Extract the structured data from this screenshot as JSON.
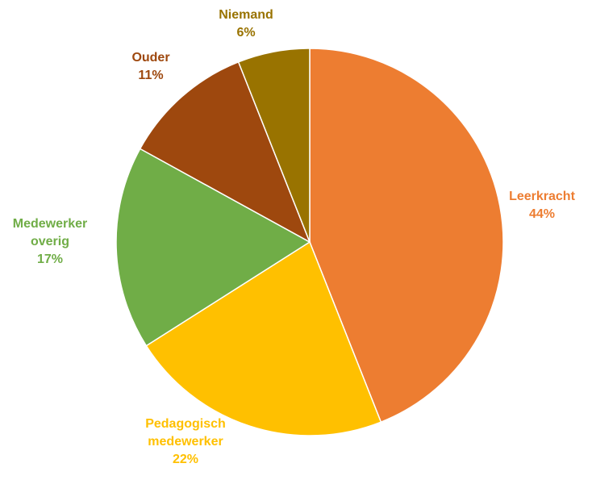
{
  "chart_data": {
    "type": "pie",
    "categories": [
      "Leerkracht",
      "Pedagogisch medewerker",
      "Medewerker overig",
      "Ouder",
      "Niemand"
    ],
    "values": [
      44,
      22,
      17,
      11,
      6
    ],
    "value_labels": [
      "44%",
      "22%",
      "17%",
      "11%",
      "6%"
    ],
    "colors": [
      "#ED7D31",
      "#FFC000",
      "#70AD47",
      "#9E480E",
      "#997300"
    ]
  }
}
